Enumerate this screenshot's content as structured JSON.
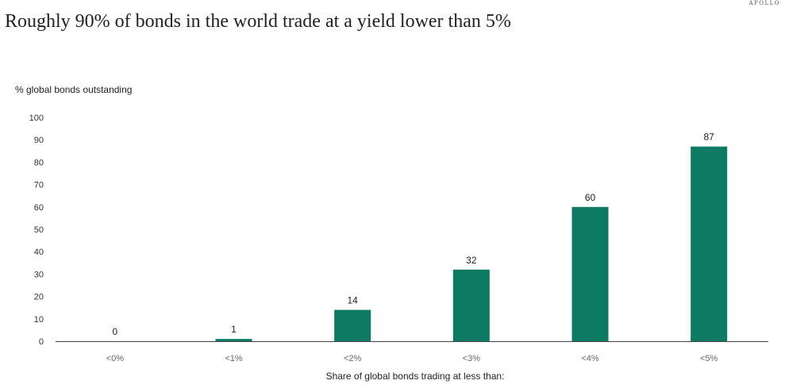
{
  "brand": "APOLLO",
  "colors": {
    "bar": "#0d7a63",
    "axis": "#444444"
  },
  "chart_data": {
    "type": "bar",
    "title": "Roughly 90% of bonds in the world trade at a yield lower than 5%",
    "ylabel": "% global bonds outstanding",
    "xlabel": "Share of global bonds trading at less than:",
    "categories": [
      "<0%",
      "<1%",
      "<2%",
      "<3%",
      "<4%",
      "<5%"
    ],
    "values": [
      0,
      1,
      14,
      32,
      60,
      87
    ],
    "data_labels": [
      "0",
      "1",
      "14",
      "32",
      "60",
      "87"
    ],
    "ylim": [
      0,
      100
    ],
    "yticks": [
      0,
      10,
      20,
      30,
      40,
      50,
      60,
      70,
      80,
      90,
      100
    ],
    "grid": false,
    "legend": "none"
  }
}
